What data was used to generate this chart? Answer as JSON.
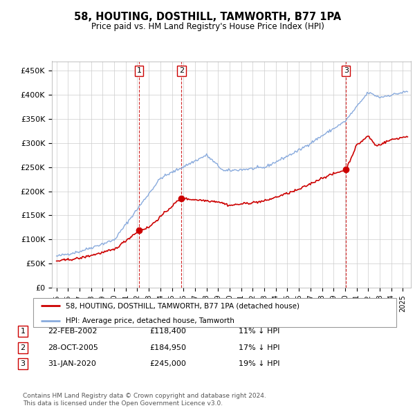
{
  "title": "58, HOUTING, DOSTHILL, TAMWORTH, B77 1PA",
  "subtitle": "Price paid vs. HM Land Registry's House Price Index (HPI)",
  "ylabel_ticks": [
    "£0",
    "£50K",
    "£100K",
    "£150K",
    "£200K",
    "£250K",
    "£300K",
    "£350K",
    "£400K",
    "£450K"
  ],
  "ytick_values": [
    0,
    50000,
    100000,
    150000,
    200000,
    250000,
    300000,
    350000,
    400000,
    450000
  ],
  "ylim": [
    0,
    470000
  ],
  "xlim_start": 1994.6,
  "xlim_end": 2025.7,
  "sale_dates": [
    2002.15,
    2005.83,
    2020.08
  ],
  "sale_prices": [
    118400,
    184950,
    245000
  ],
  "sale_labels": [
    "1",
    "2",
    "3"
  ],
  "legend_red_label": "58, HOUTING, DOSTHILL, TAMWORTH, B77 1PA (detached house)",
  "legend_blue_label": "HPI: Average price, detached house, Tamworth",
  "table_rows": [
    [
      "1",
      "22-FEB-2002",
      "£118,400",
      "11% ↓ HPI"
    ],
    [
      "2",
      "28-OCT-2005",
      "£184,950",
      "17% ↓ HPI"
    ],
    [
      "3",
      "31-JAN-2020",
      "£245,000",
      "19% ↓ HPI"
    ]
  ],
  "footnote": "Contains HM Land Registry data © Crown copyright and database right 2024.\nThis data is licensed under the Open Government Licence v3.0.",
  "red_color": "#cc0000",
  "blue_color": "#88aadd",
  "grid_color": "#cccccc",
  "bg_color": "#ffffff"
}
